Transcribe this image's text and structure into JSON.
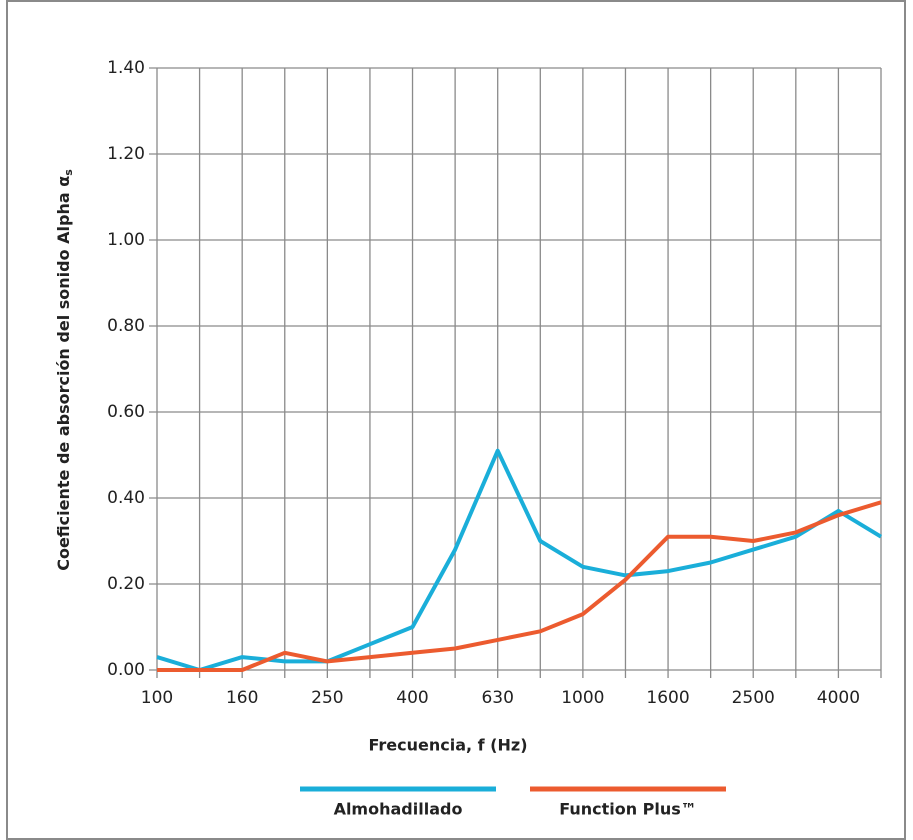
{
  "chart_data": {
    "type": "line",
    "y_label": "Coeficiente de absorción del sonido Alpha α",
    "y_label_sub": "s",
    "x_label": "Frecuencia, f (Hz)",
    "categories": [
      "100",
      null,
      "160",
      null,
      "250",
      null,
      "400",
      null,
      "630",
      null,
      "1000",
      null,
      "1600",
      null,
      "2500",
      null,
      "4000",
      null
    ],
    "series": [
      {
        "name": "Almohadillado",
        "color": "#1aaed9",
        "values": [
          0.03,
          0.0,
          0.03,
          0.02,
          0.02,
          0.06,
          0.1,
          0.28,
          0.51,
          0.3,
          0.24,
          0.22,
          0.23,
          0.25,
          0.28,
          0.31,
          0.37,
          0.31
        ]
      },
      {
        "name": "Function Plus™",
        "color": "#ec5b2f",
        "values": [
          0.0,
          0.0,
          0.0,
          0.04,
          0.02,
          0.03,
          0.04,
          0.05,
          0.07,
          0.09,
          0.13,
          0.21,
          0.31,
          0.31,
          0.3,
          0.32,
          0.36,
          0.39
        ]
      }
    ],
    "ylim": [
      0,
      1.4
    ],
    "yticks": [
      {
        "value": 0,
        "label": "0.00"
      },
      {
        "value": 0.2,
        "label": "0.20"
      },
      {
        "value": 0.4,
        "label": "0.40"
      },
      {
        "value": 0.6,
        "label": "0.60"
      },
      {
        "value": 0.8,
        "label": "0.80"
      },
      {
        "value": 1.0,
        "label": "1.00"
      },
      {
        "value": 1.2,
        "label": "1.20"
      },
      {
        "value": 1.4,
        "label": "1.40"
      }
    ],
    "grid": true
  }
}
